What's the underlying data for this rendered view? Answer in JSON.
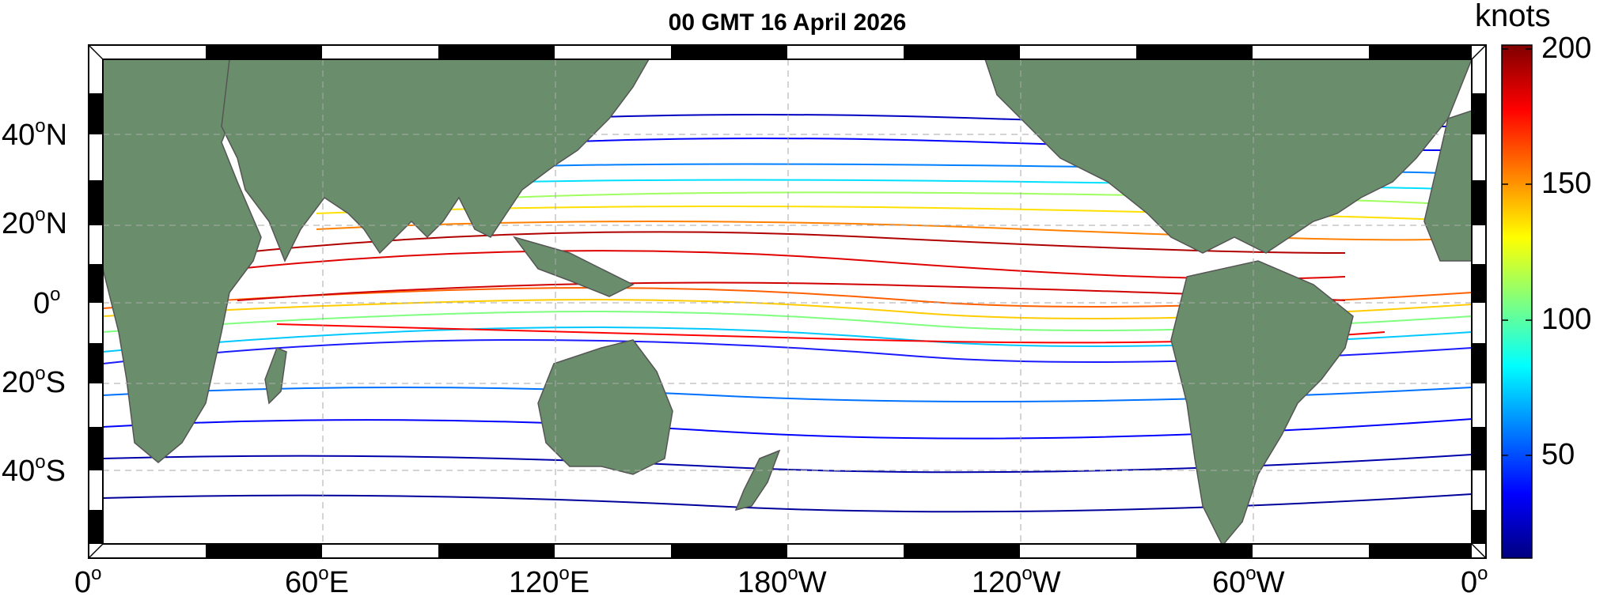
{
  "title": "00 GMT 16 April 2026",
  "colorbar": {
    "units": "knots",
    "ticks": [
      "200",
      "150",
      "100",
      "50"
    ],
    "colors": [
      "#00007f",
      "#0000ff",
      "#007fff",
      "#00ffff",
      "#7fff7f",
      "#ffff00",
      "#ff7f00",
      "#ff0000",
      "#7f0000"
    ],
    "range": [
      12,
      200
    ]
  },
  "axes": {
    "x_labels": [
      {
        "num": "0",
        "deg": "o",
        "dir": ""
      },
      {
        "num": "60",
        "deg": "o",
        "dir": "E"
      },
      {
        "num": "120",
        "deg": "o",
        "dir": "E"
      },
      {
        "num": "180",
        "deg": "o",
        "dir": "W"
      },
      {
        "num": "120",
        "deg": "o",
        "dir": "W"
      },
      {
        "num": "60",
        "deg": "o",
        "dir": "W"
      },
      {
        "num": "0",
        "deg": "o",
        "dir": ""
      }
    ],
    "y_labels": [
      {
        "num": "40",
        "deg": "o",
        "dir": "N"
      },
      {
        "num": "20",
        "deg": "o",
        "dir": "N"
      },
      {
        "num": "0",
        "deg": "o",
        "dir": ""
      },
      {
        "num": "20",
        "deg": "o",
        "dir": "S"
      },
      {
        "num": "40",
        "deg": "o",
        "dir": "S"
      }
    ]
  },
  "land_color": "#6a8e6b",
  "ocean_color": "#ffffff",
  "frame_colors": {
    "dark": "#000000",
    "light": "#ffffff"
  }
}
